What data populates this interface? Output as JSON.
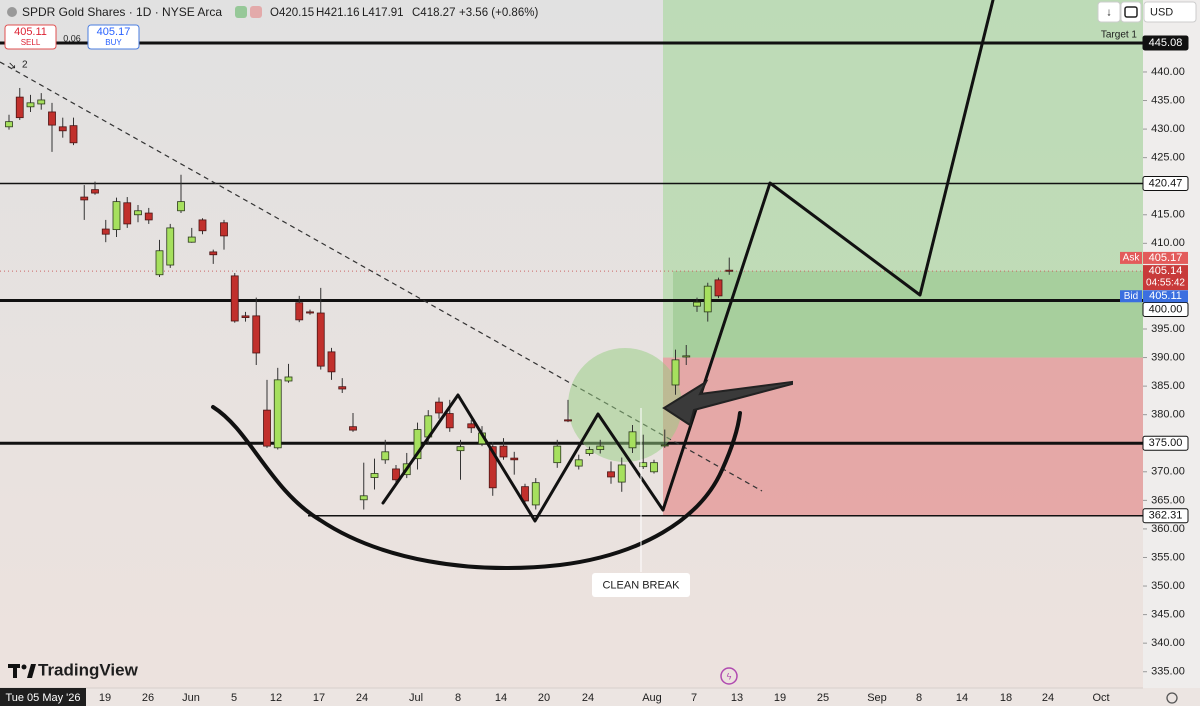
{
  "chart_data": {
    "type": "candlestick",
    "title": "SPDR Gold Shares · 1D · NYSE Arca",
    "ohlc_legend": [
      "O420.15",
      "H421.16",
      "L417.91",
      "C418.27",
      "+3.56 (+0.86%)"
    ],
    "sell": {
      "price": "405.11",
      "label": "SELL"
    },
    "spread": "0.06",
    "buy": {
      "price": "405.17",
      "label": "BUY"
    },
    "drawing_count": "2",
    "currency": "USD",
    "watermark": "TradingView",
    "annotation": "CLEAN BREAK",
    "colors": {
      "up": "#a6e05e",
      "down": "#c1302c"
    },
    "open": [
      430.4,
      435.6,
      433.9,
      434.4,
      433.0,
      430.4,
      430.6,
      418.1,
      419.4,
      412.5,
      412.4,
      417.1,
      415.0,
      415.3,
      404.5,
      406.2,
      415.7,
      410.2,
      414.1,
      408.5,
      413.6,
      404.3,
      397.3,
      397.3,
      380.8,
      374.2,
      385.9,
      399.6,
      398.0,
      397.8,
      391.0,
      384.9,
      377.9,
      365.1,
      369.0,
      372.1,
      370.5,
      369.5,
      372.3,
      376.1,
      382.2,
      380.2,
      373.7,
      378.4,
      374.9,
      374.4,
      374.5,
      372.4,
      367.4,
      364.2,
      null,
      371.6,
      379.1,
      371.0,
      373.2,
      373.9,
      370.0,
      368.2,
      374.2,
      370.9,
      370.0,
      374.6,
      385.2,
      390.1,
      399.0,
      398.0,
      403.6,
      405.3
    ],
    "high": [
      432.5,
      437.2,
      436.0,
      436.3,
      434.6,
      432.0,
      432.0,
      420.2,
      420.8,
      414.1,
      418.0,
      418.1,
      416.7,
      416.2,
      410.6,
      413.4,
      422.0,
      412.7,
      414.4,
      408.9,
      414.1,
      404.8,
      398.0,
      400.5,
      386.1,
      388.2,
      388.9,
      400.8,
      398.4,
      402.2,
      391.7,
      386.4,
      380.3,
      371.6,
      372.3,
      375.6,
      371.2,
      373.3,
      378.6,
      380.8,
      383.0,
      382.6,
      375.6,
      379.1,
      378.0,
      375.2,
      375.9,
      373.5,
      367.9,
      368.9,
      null,
      375.6,
      382.6,
      373.0,
      374.4,
      375.6,
      371.8,
      372.5,
      378.2,
      376.5,
      372.1,
      377.4,
      391.4,
      392.2,
      400.5,
      403.1,
      404.0,
      407.5
    ],
    "low": [
      429.9,
      431.6,
      433.0,
      433.4,
      426.0,
      428.5,
      427.2,
      414.1,
      418.5,
      410.2,
      411.1,
      412.7,
      413.7,
      413.4,
      404.1,
      405.7,
      415.3,
      410.1,
      411.6,
      406.4,
      408.9,
      396.1,
      396.3,
      388.7,
      374.2,
      373.9,
      385.6,
      396.2,
      397.5,
      387.9,
      386.1,
      383.8,
      377.0,
      363.4,
      366.9,
      371.4,
      367.7,
      368.9,
      370.4,
      374.9,
      379.3,
      377.0,
      368.6,
      376.8,
      374.5,
      365.8,
      372.1,
      369.5,
      364.6,
      363.4,
      null,
      370.7,
      378.7,
      370.4,
      372.8,
      373.2,
      367.9,
      366.5,
      373.3,
      370.5,
      369.7,
      374.2,
      383.5,
      388.7,
      398.0,
      396.3,
      400.4,
      404.5
    ],
    "close": [
      431.3,
      432.0,
      434.6,
      435.1,
      430.7,
      429.7,
      427.6,
      417.6,
      418.8,
      411.6,
      417.3,
      413.4,
      415.7,
      414.1,
      408.7,
      412.7,
      417.3,
      411.1,
      412.2,
      408.0,
      411.3,
      396.4,
      397.0,
      390.8,
      374.5,
      386.1,
      386.6,
      396.6,
      397.8,
      388.5,
      387.5,
      384.5,
      377.3,
      365.8,
      369.7,
      373.5,
      368.6,
      371.4,
      377.4,
      379.8,
      380.3,
      377.7,
      374.4,
      377.7,
      376.8,
      367.2,
      372.6,
      372.1,
      364.9,
      368.1,
      null,
      374.5,
      378.9,
      372.1,
      373.9,
      374.5,
      369.1,
      371.2,
      377.0,
      371.6,
      371.6,
      374.7,
      389.6,
      390.3,
      399.7,
      402.5,
      400.8,
      405.1
    ],
    "ylim": [
      331.8,
      452.6
    ],
    "yticks": [
      {
        "value": 440,
        "label": "440.00"
      },
      {
        "value": 435,
        "label": "435.00"
      },
      {
        "value": 430,
        "label": "430.00"
      },
      {
        "value": 425,
        "label": "425.00"
      },
      {
        "value": 415,
        "label": "415.00"
      },
      {
        "value": 410,
        "label": "410.00"
      },
      {
        "value": 395,
        "label": "395.00"
      },
      {
        "value": 390,
        "label": "390.00"
      },
      {
        "value": 385,
        "label": "385.00"
      },
      {
        "value": 380,
        "label": "380.00"
      },
      {
        "value": 370,
        "label": "370.00"
      },
      {
        "value": 365,
        "label": "365.00"
      },
      {
        "value": 360,
        "label": "360.00"
      },
      {
        "value": 355,
        "label": "355.00"
      },
      {
        "value": 350,
        "label": "350.00"
      },
      {
        "value": 345,
        "label": "345.00"
      },
      {
        "value": 340,
        "label": "340.00"
      },
      {
        "value": 335,
        "label": "335.00"
      }
    ],
    "x_labels": [
      "19",
      "26",
      "Jun",
      "5",
      "12",
      "17",
      "24",
      "Jul",
      "8",
      "14",
      "20",
      "24",
      "Aug",
      "7",
      "13",
      "19",
      "25",
      "Sep",
      "8",
      "14",
      "18",
      "24",
      "Oct"
    ],
    "cursor_date": "Tue 05 May '26",
    "levels": [
      {
        "value": 445.08,
        "label": "445.08",
        "name": "Target 1"
      },
      {
        "value": 420.47,
        "label": "420.47"
      },
      {
        "value": 400,
        "label": "400.00"
      },
      {
        "value": 375,
        "label": "375.00"
      },
      {
        "value": 362.31,
        "label": "362.31"
      }
    ],
    "quotes": {
      "ask": {
        "tag": "Ask",
        "value": 405.17,
        "label": "405.17"
      },
      "last": {
        "value": 405.14,
        "label": "405.14",
        "countdown": "04:55:42"
      },
      "bid": {
        "tag": "Bid",
        "value": 405.11,
        "label": "405.11"
      }
    },
    "position": {
      "entry": 405.14,
      "split": 390,
      "stop": 362.31
    }
  }
}
